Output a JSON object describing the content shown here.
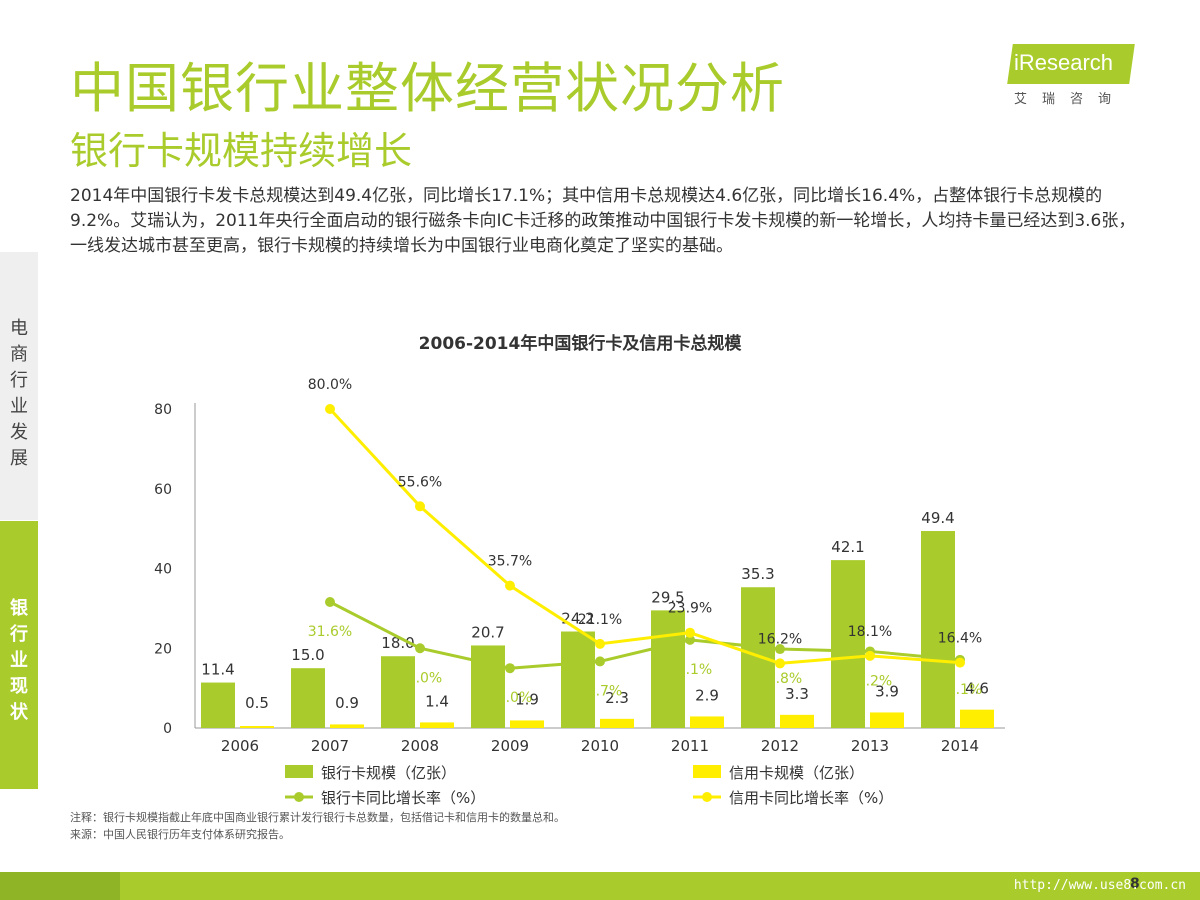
{
  "header": {
    "title": "中国银行业整体经营状况分析",
    "subtitle": "银行卡规模持续增长",
    "logo_text": "iResearch",
    "logo_sub": "艾瑞咨询"
  },
  "summary": "2014年中国银行卡发卡总规模达到49.4亿张，同比增长17.1%；其中信用卡总规模达4.6亿张，同比增长16.4%，占整体银行卡总规模的9.2%。艾瑞认为，2011年央行全面启动的银行磁条卡向IC卡迁移的政策推动中国银行卡发卡规模的新一轮增长，人均持卡量已经达到3.6张，一线发达城市甚至更高，银行卡规模的持续增长为中国银行业电商化奠定了坚实的基础。",
  "sidebar": {
    "top_label": "电商行业发展",
    "bottom_label": "银行业现状"
  },
  "chart_data": {
    "type": "bar",
    "title": "2006-2014年中国银行卡及信用卡总规模",
    "categories": [
      "2006",
      "2007",
      "2008",
      "2009",
      "2010",
      "2011",
      "2012",
      "2013",
      "2014"
    ],
    "ylim": [
      0,
      80
    ],
    "yticks": [
      0,
      20,
      40,
      60,
      80
    ],
    "grid": false,
    "legend_position": "bottom",
    "series": [
      {
        "name": "银行卡规模（亿张）",
        "kind": "bar",
        "color": "#a9cc2c",
        "values": [
          11.4,
          15.0,
          18.0,
          20.7,
          24.2,
          29.5,
          35.3,
          42.1,
          49.4
        ],
        "labels": [
          "11.4",
          "15.0",
          "18.0",
          "20.7",
          "24.2",
          "29.5",
          "35.3",
          "42.1",
          "49.4"
        ]
      },
      {
        "name": "信用卡规模（亿张）",
        "kind": "bar",
        "color": "#ffee00",
        "values": [
          0.5,
          0.9,
          1.4,
          1.9,
          2.3,
          2.9,
          3.3,
          3.9,
          4.6
        ],
        "labels": [
          "0.5",
          "0.9",
          "1.4",
          "1.9",
          "2.3",
          "2.9",
          "3.3",
          "3.9",
          "4.6"
        ]
      },
      {
        "name": "银行卡同比增长率（%）",
        "kind": "line",
        "color": "#a9cc2c",
        "values": [
          null,
          31.6,
          20.0,
          15.0,
          16.7,
          22.1,
          19.8,
          19.2,
          17.1
        ],
        "labels": [
          null,
          "31.6%",
          "20.0%",
          "15.0%",
          "16.7%",
          "22.1%",
          "19.8%",
          "19.2%",
          "17.1%"
        ]
      },
      {
        "name": "信用卡同比增长率（%）",
        "kind": "line",
        "color": "#ffee00",
        "values": [
          null,
          80.0,
          55.6,
          35.7,
          21.1,
          23.9,
          16.2,
          18.1,
          16.4
        ],
        "labels": [
          null,
          "80.0%",
          "55.6%",
          "35.7%",
          "21.1%",
          "23.9%",
          "16.2%",
          "18.1%",
          "16.4%"
        ]
      }
    ]
  },
  "notes": {
    "note": "注释：银行卡规模指截止年底中国商业银行累计发行银行卡总数量，包括借记卡和信用卡的数量总和。",
    "source": "来源：中国人民银行历年支付体系研究报告。"
  },
  "footer": {
    "watermark": "http://www.use8.com.cn",
    "page": "8"
  },
  "colors": {
    "accent": "#a9cc2c",
    "yellow": "#ffee00"
  }
}
